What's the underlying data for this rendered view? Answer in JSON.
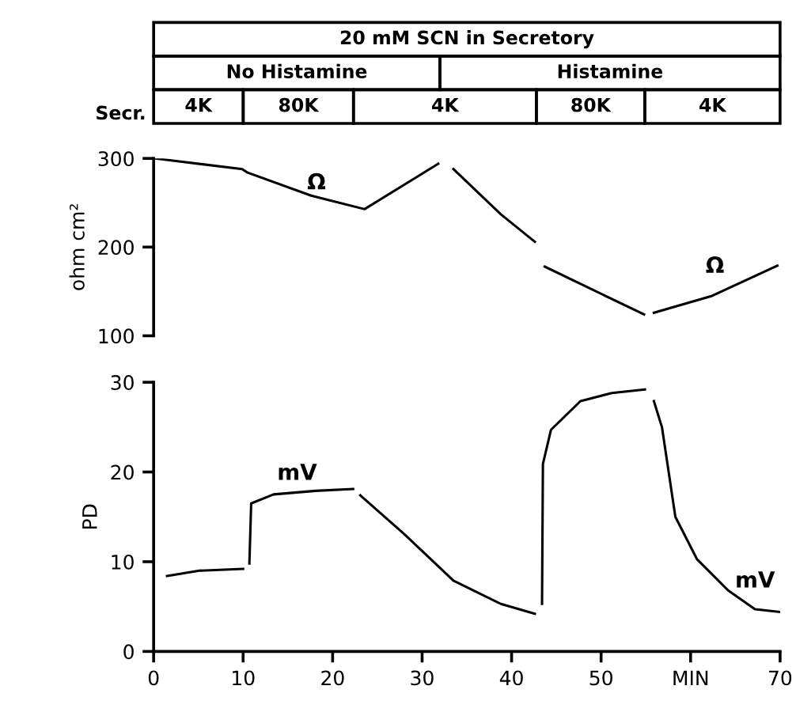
{
  "chart_data": [
    {
      "type": "line",
      "ylabel": "ohm cm²",
      "xlim": [
        0,
        70
      ],
      "ylim": [
        100,
        300
      ],
      "yticks": [
        100,
        200,
        300
      ],
      "tick_labels": "y",
      "grid": false,
      "marker": "none",
      "line_style": "solid",
      "series": [
        {
          "color": "#000000",
          "x": [
            0.1,
            9.9,
            10.5,
            17.6,
            23.5,
            23.6,
            31.8,
            32.5,
            33.5,
            38.8,
            42.6,
            43.2,
            43.7,
            54.8,
            55.3,
            55.9,
            62.4,
            69.7
          ],
          "values": [
            300,
            288,
            284,
            258,
            243,
            243,
            294,
            null,
            288,
            237,
            206,
            null,
            178,
            124,
            null,
            126,
            145,
            179
          ]
        }
      ],
      "annotations": [
        "Ω",
        "Ω",
        "Secr.",
        "20 mM SCN in Secretory",
        "No Histamine",
        "Histamine",
        "4K",
        "80K",
        "4K",
        "80K",
        "4K"
      ]
    },
    {
      "type": "line",
      "ylabel": "PD",
      "xlim": [
        0,
        70
      ],
      "ylim": [
        0,
        30
      ],
      "yticks": [
        0,
        10,
        20,
        30
      ],
      "xticks": [
        0,
        10,
        20,
        30,
        40,
        50,
        {
          "value": 60,
          "label": "MIN"
        },
        70
      ],
      "grid": false,
      "marker": "none",
      "line_style": "solid",
      "series": [
        {
          "color": "#000000",
          "x": [
            1.5,
            5.1,
            10.0,
            10.3,
            10.7,
            10.9,
            13.4,
            18.1,
            22.3,
            22.7,
            23.1,
            28.2,
            33.5,
            38.8,
            42.6,
            43.0,
            43.4,
            43.5,
            44.4,
            47.7,
            51.2,
            54.9,
            55.4,
            55.9,
            56.8,
            58.3,
            60.7,
            64.2,
            67.2,
            70.0
          ],
          "values": [
            8.4,
            9.0,
            9.2,
            null,
            9.8,
            16.5,
            17.5,
            17.9,
            18.1,
            null,
            17.4,
            12.9,
            7.9,
            5.3,
            4.2,
            null,
            5.3,
            20.9,
            24.7,
            27.9,
            28.8,
            29.2,
            null,
            27.9,
            25.0,
            15.0,
            10.3,
            6.8,
            4.7,
            4.4
          ]
        }
      ],
      "annotations": [
        "mV",
        "mV"
      ]
    }
  ]
}
